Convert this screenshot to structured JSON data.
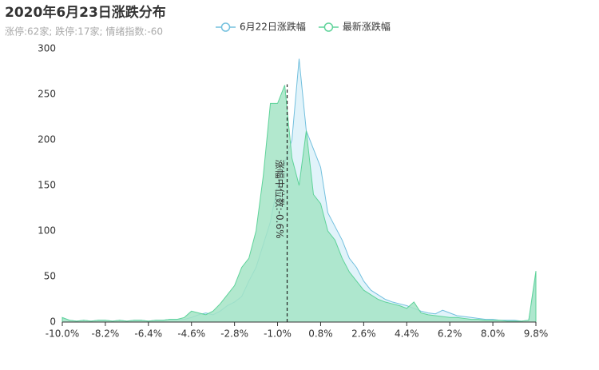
{
  "chart_data": {
    "type": "area",
    "title": "2020年6月23日涨跌分布",
    "subtitle": "涨停:62家; 跌停:17家; 情绪指数:-60",
    "x": [
      -10.0,
      -9.7,
      -9.4,
      -9.1,
      -8.8,
      -8.5,
      -8.2,
      -7.9,
      -7.6,
      -7.3,
      -7.0,
      -6.7,
      -6.4,
      -6.1,
      -5.8,
      -5.5,
      -5.2,
      -4.9,
      -4.6,
      -4.3,
      -4.0,
      -3.7,
      -3.4,
      -3.1,
      -2.8,
      -2.5,
      -2.2,
      -1.9,
      -1.6,
      -1.3,
      -1.0,
      -0.7,
      -0.4,
      -0.1,
      0.2,
      0.5,
      0.8,
      1.1,
      1.4,
      1.7,
      2.0,
      2.3,
      2.6,
      2.9,
      3.2,
      3.5,
      3.8,
      4.1,
      4.4,
      4.7,
      5.0,
      5.3,
      5.6,
      5.9,
      6.2,
      6.5,
      6.8,
      7.1,
      7.4,
      7.7,
      8.0,
      8.3,
      8.6,
      8.9,
      9.2,
      9.5,
      9.8
    ],
    "series": [
      {
        "name": "6月22日涨跌幅",
        "color": "#73c0de",
        "fill": "#dcf1f9",
        "values": [
          5,
          2,
          1,
          2,
          1,
          2,
          2,
          1,
          2,
          1,
          2,
          2,
          1,
          2,
          2,
          3,
          3,
          3,
          5,
          8,
          10,
          8,
          12,
          18,
          22,
          28,
          45,
          60,
          85,
          110,
          150,
          175,
          200,
          289,
          210,
          190,
          170,
          120,
          105,
          90,
          70,
          60,
          45,
          35,
          30,
          25,
          22,
          20,
          18,
          15,
          12,
          10,
          9,
          13,
          10,
          7,
          6,
          5,
          4,
          3,
          3,
          2,
          2,
          2,
          1,
          2,
          50
        ]
      },
      {
        "name": "最新涨跌幅",
        "color": "#5fd39a",
        "fill": "#a5e4c6",
        "values": [
          5,
          2,
          1,
          2,
          1,
          2,
          2,
          1,
          2,
          1,
          2,
          2,
          1,
          2,
          2,
          3,
          3,
          5,
          12,
          10,
          8,
          12,
          20,
          30,
          40,
          60,
          70,
          100,
          160,
          240,
          240,
          260,
          180,
          150,
          210,
          140,
          130,
          100,
          90,
          70,
          55,
          45,
          35,
          30,
          25,
          22,
          20,
          18,
          15,
          22,
          10,
          8,
          7,
          6,
          5,
          5,
          4,
          3,
          3,
          2,
          2,
          2,
          1,
          1,
          1,
          2,
          56
        ]
      }
    ],
    "median": {
      "value": -0.6,
      "label": "涨幅中位数:-0.6%"
    },
    "xlim": [
      -10.0,
      9.8
    ],
    "xticks": [
      {
        "value": -10.0,
        "label": "-10.0%"
      },
      {
        "value": -8.2,
        "label": "-8.2%"
      },
      {
        "value": -6.4,
        "label": "-6.4%"
      },
      {
        "value": -4.6,
        "label": "-4.6%"
      },
      {
        "value": -2.8,
        "label": "-2.8%"
      },
      {
        "value": -1.0,
        "label": "-1.0%"
      },
      {
        "value": 0.8,
        "label": "0.8%"
      },
      {
        "value": 2.6,
        "label": "2.6%"
      },
      {
        "value": 4.4,
        "label": "4.4%"
      },
      {
        "value": 6.2,
        "label": "6.2%"
      },
      {
        "value": 8.0,
        "label": "8.0%"
      },
      {
        "value": 9.8,
        "label": "9.8%"
      }
    ],
    "ylim": [
      0,
      300
    ],
    "yticks": [
      0,
      50,
      100,
      150,
      200,
      250,
      300
    ],
    "grid": false
  }
}
